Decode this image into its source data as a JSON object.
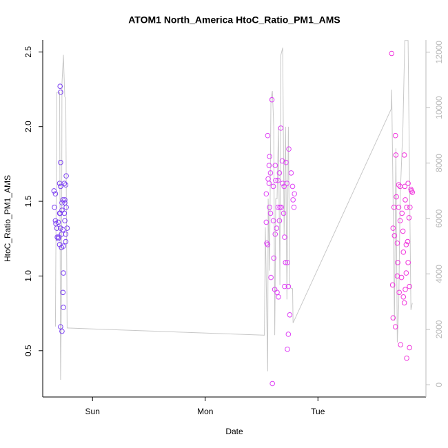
{
  "chart_data": {
    "type": "scatter",
    "title": "ATOM1 North_America HtoC_Ratio_PM1_AMS",
    "x_label": "Date",
    "y_label": "HtoC_Ratio_PM1_AMS",
    "xlim": [
      -10.6,
      71
    ],
    "xticks": [
      {
        "value": 0,
        "label": "Sun"
      },
      {
        "value": 24,
        "label": "Mon"
      },
      {
        "value": 48,
        "label": "Tue"
      }
    ],
    "ylim": [
      0.19,
      2.58
    ],
    "yticks": [
      0.5,
      {
        "value": 1.0,
        "label": "1.0"
      },
      1.5,
      {
        "value": 2.0,
        "label": "2.0"
      },
      2.5
    ],
    "y2lim": [
      -440,
      12440
    ],
    "y2ticks": [
      0,
      2000,
      4000,
      6000,
      8000,
      10000,
      12000
    ],
    "series": [
      {
        "color": "#7b3ff2",
        "x": [
          -8.1,
          -8.2,
          -7.9,
          -7.9,
          -7.8,
          -7.6,
          -7.3,
          -7.5,
          -7.2,
          -7.0,
          -6.9,
          -6.8,
          -6.8,
          -6.8,
          -6.6,
          -6.8,
          -6.5,
          -6.5,
          -6.8,
          -6.5,
          -6.3,
          -6.3,
          -6.2,
          -6.2,
          -6.0,
          -5.9,
          -5.9,
          -5.7,
          -5.6,
          -5.7,
          -5.4,
          -7.0,
          -6.9,
          -6.6,
          -6.3,
          -6.0,
          -5.9,
          -5.7,
          -5.6,
          -6.2,
          -7.0,
          -7.3
        ],
        "values": [
          1.46,
          1.57,
          1.55,
          1.37,
          1.35,
          1.32,
          1.25,
          1.26,
          1.26,
          1.42,
          2.27,
          2.23,
          1.76,
          1.6,
          1.19,
          0.66,
          0.63,
          1.49,
          1.32,
          1.44,
          1.31,
          0.89,
          0.79,
          1.02,
          1.62,
          1.51,
          1.49,
          1.61,
          1.67,
          1.23,
          1.32,
          1.62,
          1.42,
          1.28,
          1.51,
          1.42,
          1.37,
          1.28,
          1.46,
          1.2,
          1.21,
          1.36
        ]
      },
      {
        "color": "#de40f5",
        "x": [
          37.3,
          37.0,
          37.0,
          37.1,
          37.3,
          37.4,
          37.6,
          37.7,
          37.6,
          37.7,
          37.9,
          38.0,
          38.2,
          38.3,
          38.5,
          38.6,
          38.8,
          38.9,
          39.0,
          39.2,
          39.3,
          39.5,
          39.6,
          39.8,
          39.9,
          40.1,
          40.2,
          40.4,
          40.5,
          40.7,
          40.8,
          40.9,
          40.9,
          41.1,
          41.2,
          41.4,
          41.5,
          41.7,
          41.7,
          41.5,
          41.8,
          42.0,
          42.3,
          42.6,
          42.7,
          42.9,
          43.0,
          39.5,
          39.8,
          38.5,
          38.9,
          37.9
        ],
        "values": [
          1.94,
          1.55,
          1.36,
          1.22,
          1.21,
          1.65,
          1.62,
          1.8,
          1.74,
          1.46,
          1.42,
          0.99,
          2.18,
          0.28,
          1.6,
          1.12,
          0.91,
          1.74,
          1.64,
          1.32,
          0.89,
          1.46,
          0.86,
          1.69,
          1.46,
          1.99,
          1.46,
          1.77,
          1.62,
          1.42,
          1.6,
          0.93,
          1.26,
          1.09,
          1.76,
          1.62,
          1.09,
          0.93,
          0.61,
          0.51,
          1.85,
          0.74,
          1.69,
          1.6,
          1.51,
          1.46,
          1.55,
          1.64,
          1.37,
          1.37,
          1.28,
          1.69
        ]
      },
      {
        "color": "#f035dc",
        "x": [
          63.7,
          63.9,
          64.0,
          64.0,
          64.2,
          64.3,
          64.5,
          64.5,
          64.6,
          64.7,
          64.9,
          64.9,
          65.0,
          65.2,
          65.3,
          65.5,
          65.5,
          65.6,
          65.8,
          65.9,
          66.1,
          66.2,
          66.4,
          66.4,
          66.5,
          66.6,
          66.6,
          66.8,
          66.9,
          66.9,
          67.1,
          67.2,
          67.2,
          67.4,
          67.5,
          67.6,
          67.8,
          67.9,
          68.1,
          67.5,
          66.8,
          66.2,
          65.2
        ],
        "values": [
          2.49,
          0.94,
          0.72,
          1.32,
          1.46,
          1.27,
          0.66,
          1.94,
          1.81,
          1.53,
          1.0,
          1.22,
          1.09,
          1.61,
          0.89,
          1.37,
          1.6,
          0.54,
          0.99,
          1.42,
          1.3,
          1.16,
          0.82,
          1.81,
          1.6,
          1.51,
          0.91,
          1.02,
          1.46,
          0.45,
          1.23,
          1.09,
          1.62,
          1.39,
          0.52,
          1.46,
          1.58,
          1.57,
          1.56,
          0.93,
          1.21,
          0.86,
          1.46
        ]
      },
      {
        "color": "#c8c8c8",
        "axis": "y2",
        "x": [
          -7.9,
          -7.6,
          -7.0,
          -6.8,
          -6.6,
          -6.5,
          -6.2,
          -5.9,
          -5.7,
          -5.4,
          -5.3,
          36.6,
          36.8,
          37.3,
          37.4,
          37.7,
          38.0,
          38.3,
          38.6,
          38.8,
          38.9,
          39.0,
          39.3,
          39.6,
          39.9,
          40.1,
          40.5,
          40.8,
          41.1,
          41.4,
          41.7,
          42.0,
          42.3,
          42.6,
          42.7,
          63.6,
          63.7,
          64.0,
          64.3,
          64.6,
          64.9,
          65.2,
          65.5,
          66.1,
          66.5,
          67.2,
          67.8,
          68.1
        ],
        "values": [
          2100,
          10550,
          10550,
          180,
          3340,
          10860,
          11900,
          10390,
          10340,
          2050,
          2050,
          1790,
          5680,
          490,
          6710,
          4120,
          10340,
          10600,
          9310,
          1790,
          3600,
          6710,
          6710,
          9310,
          3600,
          11900,
          12160,
          5420,
          9310,
          3080,
          9310,
          3600,
          3470,
          3470,
          2230,
          9950,
          10650,
          6710,
          2310,
          8530,
          1530,
          2830,
          6710,
          9310,
          12420,
          12420,
          2700,
          2950
        ]
      }
    ]
  }
}
